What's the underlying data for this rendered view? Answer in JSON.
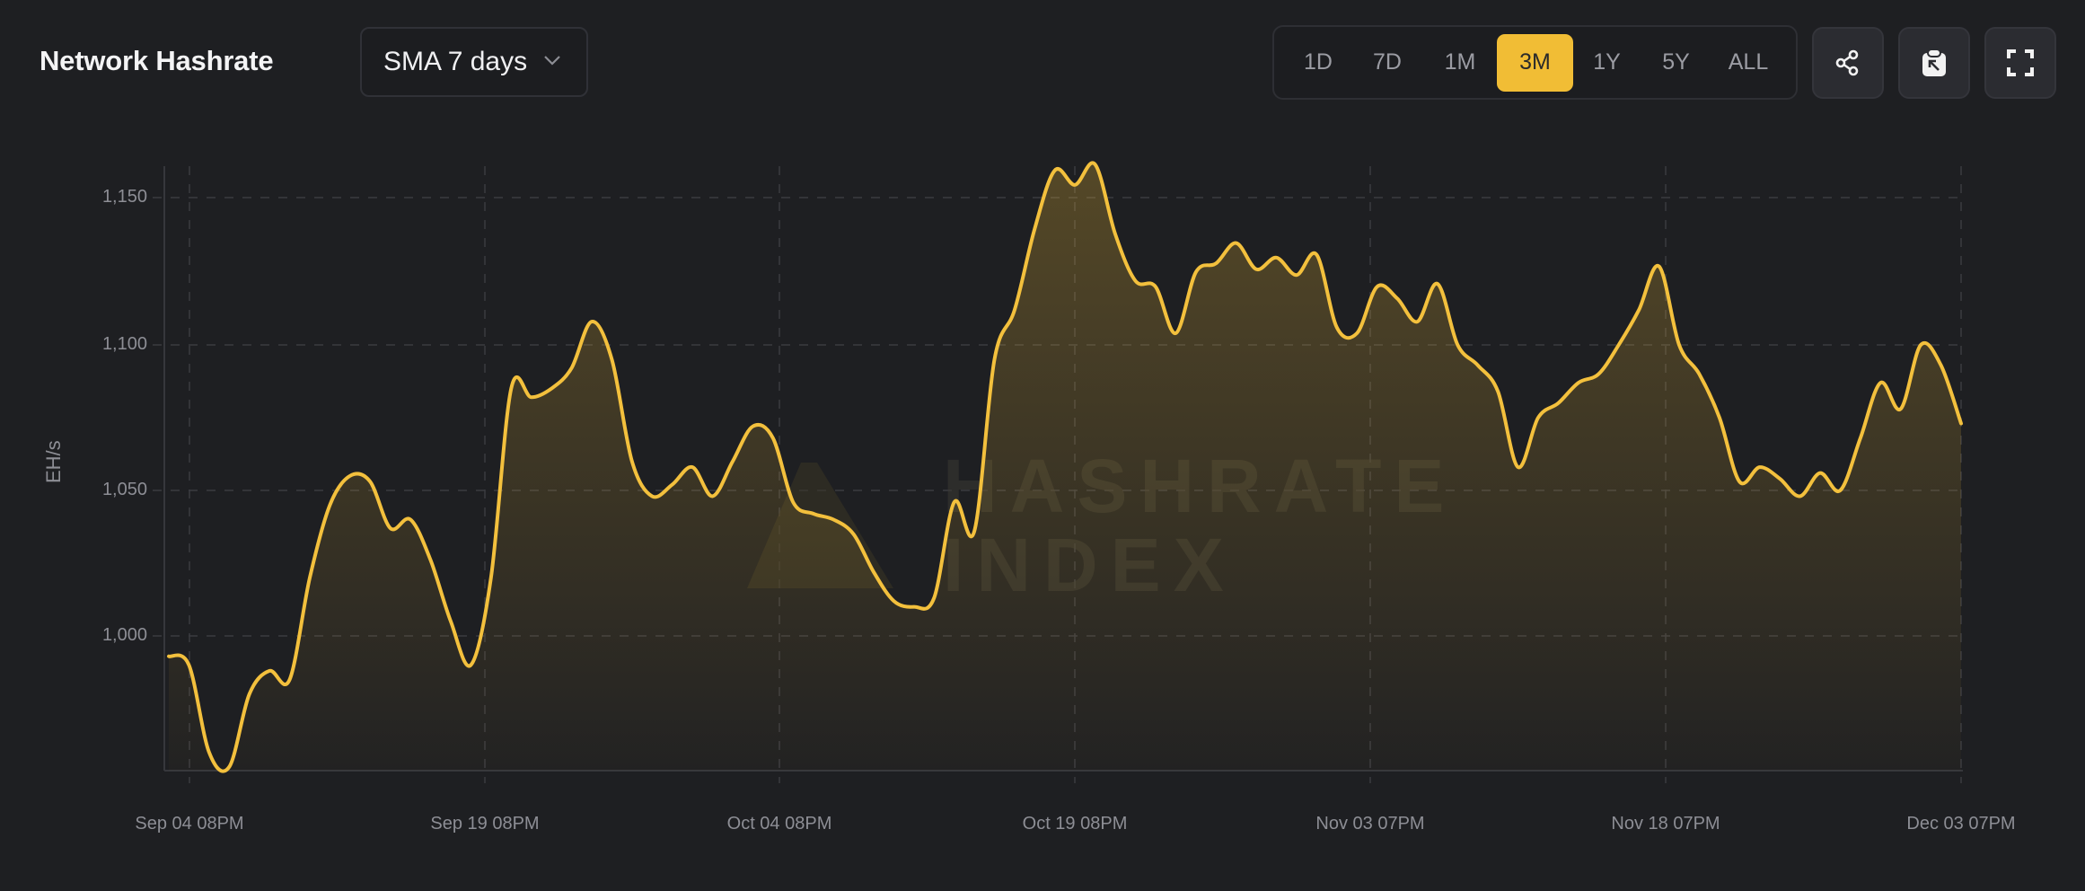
{
  "header": {
    "title": "Network Hashrate",
    "smoothing_select": {
      "value": "SMA 7 days"
    },
    "ranges": [
      {
        "label": "1D",
        "active": false
      },
      {
        "label": "7D",
        "active": false
      },
      {
        "label": "1M",
        "active": false
      },
      {
        "label": "3M",
        "active": true
      },
      {
        "label": "1Y",
        "active": false
      },
      {
        "label": "5Y",
        "active": false
      },
      {
        "label": "ALL",
        "active": false
      }
    ],
    "actions": [
      {
        "name": "share",
        "icon": "share-icon"
      },
      {
        "name": "copy-to-clipboard",
        "icon": "clipboard-icon"
      },
      {
        "name": "fullscreen",
        "icon": "fullscreen-icon"
      }
    ]
  },
  "colors": {
    "background": "#1e1f22",
    "accent": "#f1bd35",
    "line": "#f3c03d",
    "grid": "#3a3b40",
    "axis_text": "#8d8e95"
  },
  "watermark": {
    "line1": "HASHRATE",
    "line2": "INDEX"
  },
  "chart_data": {
    "type": "area",
    "title": "Network Hashrate",
    "xlabel": "",
    "ylabel": "EH/s",
    "ylim": [
      954,
      1162
    ],
    "grid": true,
    "legend": "none",
    "y_ticks": [
      "1,000",
      "1,050",
      "1,100",
      "1,150"
    ],
    "x_ticks": [
      "Sep 04 08PM",
      "Sep 19 08PM",
      "Oct 04 08PM",
      "Oct 19 08PM",
      "Nov 03 07PM",
      "Nov 18 07PM",
      "Dec 03 07PM"
    ],
    "series": [
      {
        "name": "Network Hashrate (SMA 7 days)",
        "x": [
          "Sep 03",
          "Sep 05",
          "Sep 07",
          "Sep 08",
          "Sep 09",
          "Sep 10",
          "Sep 11",
          "Sep 12",
          "Sep 13",
          "Sep 14",
          "Sep 15",
          "Sep 16",
          "Sep 17",
          "Sep 18",
          "Sep 19",
          "Sep 20",
          "Sep 21",
          "Sep 22",
          "Sep 23",
          "Sep 24",
          "Sep 25",
          "Sep 26",
          "Sep 27",
          "Sep 28",
          "Sep 29",
          "Sep 30",
          "Oct 01",
          "Oct 02",
          "Oct 03",
          "Oct 04",
          "Oct 05",
          "Oct 06",
          "Oct 07",
          "Oct 08",
          "Oct 09",
          "Oct 10",
          "Oct 11",
          "Oct 12",
          "Oct 13",
          "Oct 14",
          "Oct 15",
          "Oct 16",
          "Oct 17",
          "Oct 18",
          "Oct 19",
          "Oct 20",
          "Oct 21",
          "Oct 22",
          "Oct 23",
          "Oct 24",
          "Oct 25",
          "Oct 26",
          "Oct 27",
          "Oct 28",
          "Oct 29",
          "Oct 30",
          "Oct 31",
          "Nov 01",
          "Nov 02",
          "Nov 03",
          "Nov 04",
          "Nov 05",
          "Nov 06",
          "Nov 07",
          "Nov 08",
          "Nov 09",
          "Nov 10",
          "Nov 11",
          "Nov 12",
          "Nov 13",
          "Nov 14",
          "Nov 15",
          "Nov 16",
          "Nov 17",
          "Nov 18",
          "Nov 19",
          "Nov 20",
          "Nov 21",
          "Nov 22",
          "Nov 23",
          "Nov 24",
          "Nov 25",
          "Nov 26",
          "Nov 27",
          "Nov 28",
          "Nov 29",
          "Nov 30",
          "Dec 01",
          "Dec 02",
          "Dec 03"
        ],
        "values": [
          993,
          990,
          960,
          955,
          980,
          988,
          985,
          1020,
          1045,
          1055,
          1053,
          1037,
          1040,
          1026,
          1005,
          990,
          1020,
          1085,
          1082,
          1085,
          1092,
          1108,
          1095,
          1060,
          1048,
          1052,
          1058,
          1048,
          1060,
          1072,
          1068,
          1046,
          1042,
          1040,
          1035,
          1022,
          1012,
          1010,
          1013,
          1046,
          1036,
          1095,
          1112,
          1140,
          1160,
          1155,
          1162,
          1138,
          1122,
          1120,
          1104,
          1125,
          1128,
          1135,
          1126,
          1130,
          1124,
          1131,
          1106,
          1104,
          1120,
          1116,
          1108,
          1121,
          1100,
          1093,
          1084,
          1058,
          1075,
          1080,
          1087,
          1090,
          1100,
          1112,
          1127,
          1100,
          1090,
          1075,
          1053,
          1058,
          1054,
          1048,
          1056,
          1050,
          1068,
          1087,
          1078,
          1100,
          1093,
          1073
        ]
      }
    ]
  }
}
